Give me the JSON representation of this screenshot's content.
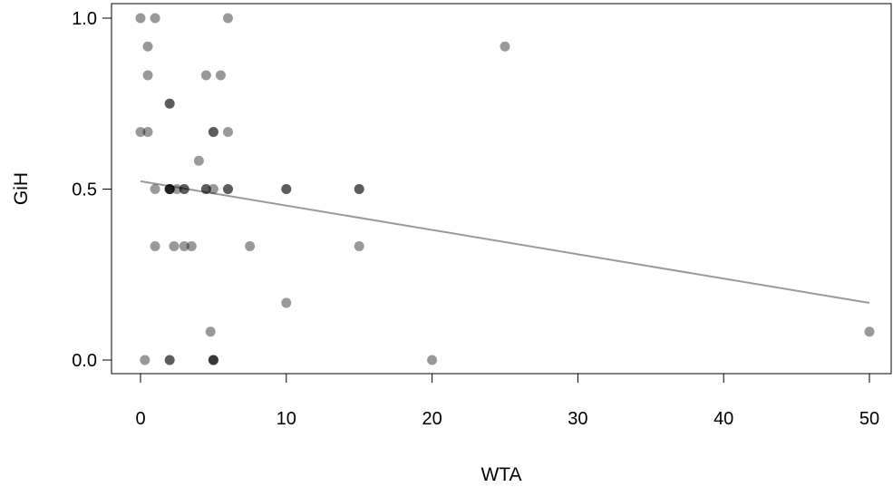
{
  "chart_data": {
    "type": "scatter",
    "xlabel": "WTA",
    "ylabel": "GiH",
    "xlim": [
      -2,
      51.5
    ],
    "ylim": [
      -0.04,
      1.04
    ],
    "x_ticks": [
      0,
      10,
      20,
      30,
      40,
      50
    ],
    "y_ticks": [
      0.0,
      0.5,
      1.0
    ],
    "x_tick_labels": [
      "0",
      "10",
      "20",
      "30",
      "40",
      "50"
    ],
    "y_tick_labels": [
      "0.0",
      "0.5",
      "1.0"
    ],
    "grid": false,
    "legend": "none",
    "point_color": "#000000",
    "point_opacity": 0.4,
    "trend_line_color": "#999999",
    "points": [
      {
        "x": 0,
        "y": 1.0
      },
      {
        "x": 1,
        "y": 1.0
      },
      {
        "x": 6,
        "y": 1.0
      },
      {
        "x": 0.5,
        "y": 0.917
      },
      {
        "x": 25,
        "y": 0.917
      },
      {
        "x": 0.5,
        "y": 0.833
      },
      {
        "x": 4.5,
        "y": 0.833
      },
      {
        "x": 5.5,
        "y": 0.833
      },
      {
        "x": 2,
        "y": 0.75
      },
      {
        "x": 2,
        "y": 0.75
      },
      {
        "x": 0,
        "y": 0.667
      },
      {
        "x": 0.5,
        "y": 0.667
      },
      {
        "x": 5,
        "y": 0.667
      },
      {
        "x": 5,
        "y": 0.667
      },
      {
        "x": 6,
        "y": 0.667
      },
      {
        "x": 4,
        "y": 0.583
      },
      {
        "x": 1,
        "y": 0.5
      },
      {
        "x": 2,
        "y": 0.5
      },
      {
        "x": 2,
        "y": 0.5
      },
      {
        "x": 2,
        "y": 0.5
      },
      {
        "x": 2,
        "y": 0.5
      },
      {
        "x": 2.5,
        "y": 0.5
      },
      {
        "x": 3,
        "y": 0.5
      },
      {
        "x": 3,
        "y": 0.5
      },
      {
        "x": 4.5,
        "y": 0.5
      },
      {
        "x": 4.5,
        "y": 0.5
      },
      {
        "x": 5,
        "y": 0.5
      },
      {
        "x": 6,
        "y": 0.5
      },
      {
        "x": 6,
        "y": 0.5
      },
      {
        "x": 10,
        "y": 0.5
      },
      {
        "x": 10,
        "y": 0.5
      },
      {
        "x": 15,
        "y": 0.5
      },
      {
        "x": 15,
        "y": 0.5
      },
      {
        "x": 1,
        "y": 0.333
      },
      {
        "x": 2.3,
        "y": 0.333
      },
      {
        "x": 3,
        "y": 0.333
      },
      {
        "x": 3.5,
        "y": 0.333
      },
      {
        "x": 7.5,
        "y": 0.333
      },
      {
        "x": 15,
        "y": 0.333
      },
      {
        "x": 10,
        "y": 0.167
      },
      {
        "x": 4.8,
        "y": 0.083
      },
      {
        "x": 50,
        "y": 0.083
      },
      {
        "x": 0.3,
        "y": 0.0
      },
      {
        "x": 2,
        "y": 0.0
      },
      {
        "x": 2,
        "y": 0.0
      },
      {
        "x": 5,
        "y": 0.0
      },
      {
        "x": 5,
        "y": 0.0
      },
      {
        "x": 5,
        "y": 0.0
      },
      {
        "x": 20,
        "y": 0.0
      }
    ],
    "trend_line": {
      "x": [
        0,
        50
      ],
      "y": [
        0.523,
        0.167
      ]
    }
  }
}
